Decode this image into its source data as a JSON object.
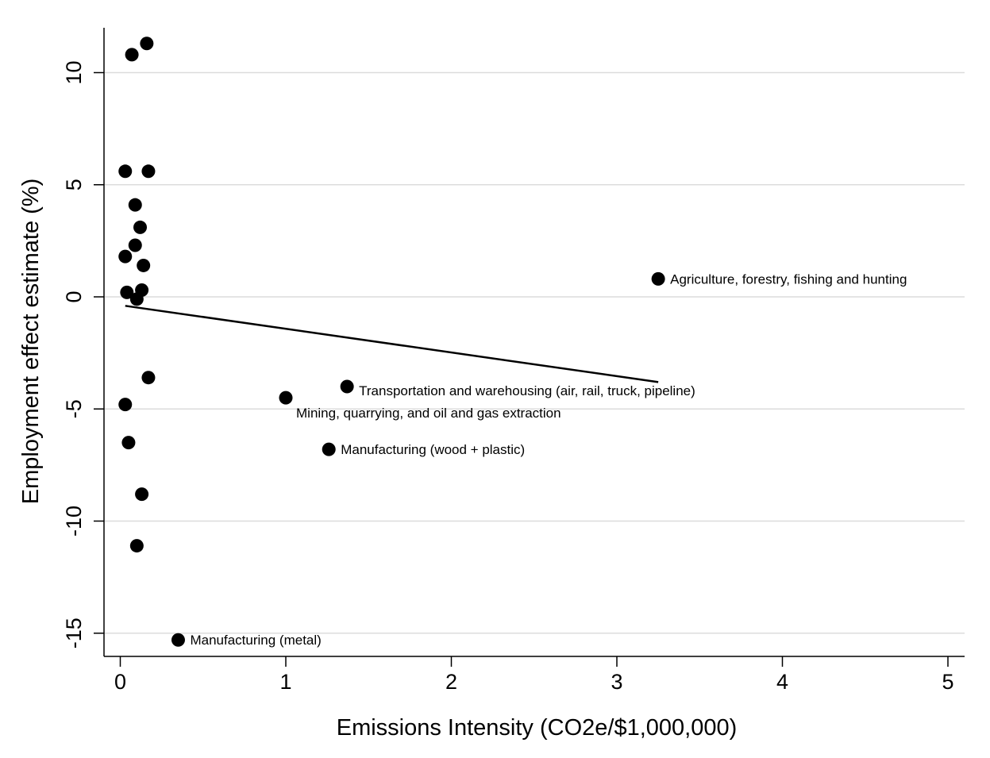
{
  "chart_data": {
    "type": "scatter",
    "title": "",
    "xlabel": "Emissions Intensity (CO2e/$1,000,000)",
    "ylabel": "Employment effect estimate (%)",
    "xlim": [
      -0.1,
      5.1
    ],
    "ylim": [
      -16.0,
      12.0
    ],
    "x_ticks": [
      0,
      1,
      2,
      3,
      4,
      5
    ],
    "y_ticks": [
      -15,
      -10,
      -5,
      0,
      5,
      10
    ],
    "grid": "horizontal",
    "legend": "none",
    "colors": {
      "marker": "#000000",
      "grid": "#dcdcdc",
      "axis": "#000000",
      "fit_line": "#000000"
    },
    "points": [
      {
        "x": 0.16,
        "y": 11.3,
        "label": ""
      },
      {
        "x": 0.07,
        "y": 10.8,
        "label": ""
      },
      {
        "x": 0.03,
        "y": 5.6,
        "label": ""
      },
      {
        "x": 0.17,
        "y": 5.6,
        "label": ""
      },
      {
        "x": 0.09,
        "y": 4.1,
        "label": ""
      },
      {
        "x": 0.12,
        "y": 3.1,
        "label": ""
      },
      {
        "x": 0.09,
        "y": 2.3,
        "label": ""
      },
      {
        "x": 0.03,
        "y": 1.8,
        "label": ""
      },
      {
        "x": 0.14,
        "y": 1.4,
        "label": ""
      },
      {
        "x": 0.04,
        "y": 0.2,
        "label": ""
      },
      {
        "x": 0.13,
        "y": 0.3,
        "label": ""
      },
      {
        "x": 0.1,
        "y": -0.1,
        "label": ""
      },
      {
        "x": 0.17,
        "y": -3.6,
        "label": ""
      },
      {
        "x": 0.03,
        "y": -4.8,
        "label": ""
      },
      {
        "x": 0.05,
        "y": -6.5,
        "label": ""
      },
      {
        "x": 0.13,
        "y": -8.8,
        "label": ""
      },
      {
        "x": 0.1,
        "y": -11.1,
        "label": ""
      },
      {
        "x": 3.25,
        "y": 0.8,
        "label": "Agriculture, forestry, fishing and hunting"
      },
      {
        "x": 1.37,
        "y": -4.0,
        "label": "Transportation and warehousing (air, rail, truck, pipeline)"
      },
      {
        "x": 1.0,
        "y": -4.5,
        "label": "Mining, quarrying, and oil and gas extraction"
      },
      {
        "x": 1.26,
        "y": -6.8,
        "label": "Manufacturing (wood + plastic)"
      },
      {
        "x": 0.35,
        "y": -15.3,
        "label": "Manufacturing (metal)"
      }
    ],
    "fit_line": [
      {
        "x": 0.03,
        "y": -0.4
      },
      {
        "x": 3.25,
        "y": -3.8
      }
    ]
  }
}
